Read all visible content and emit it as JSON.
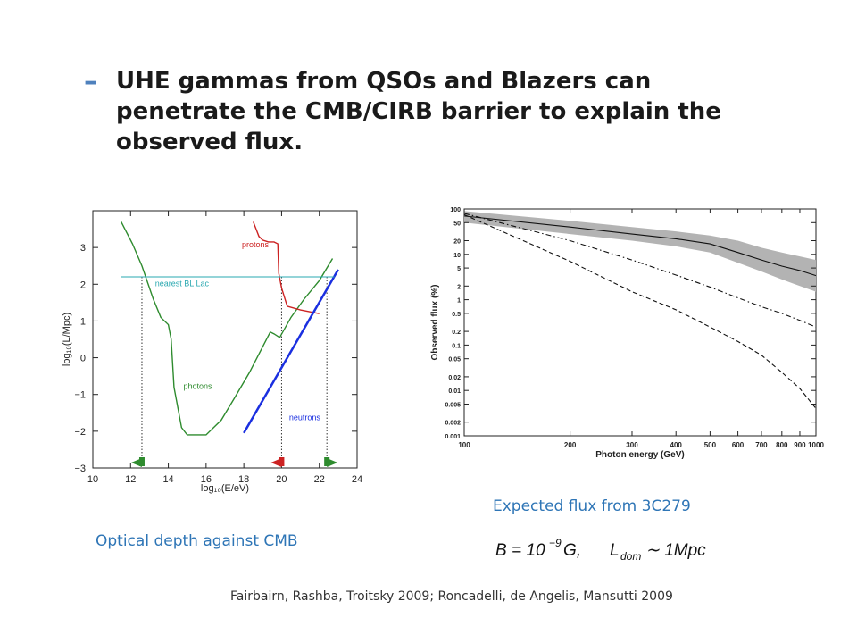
{
  "slide": {
    "bullet_dash": "–",
    "bullet_lines": [
      "UHE gammas  from QSOs and Blazers can",
      "penetrate the CMB/CIRB barrier to explain the",
      "observed flux."
    ],
    "caption_left": "Optical depth against CMB",
    "caption_right": "Expected flux from 3C279",
    "formula": "B = 10⁻⁹G,    L_dom ∼ 1Mpc",
    "references": "Fairbairn, Rashba, Troitsky 2009; Roncadelli, de Angelis, Mansutti 2009"
  },
  "chart_data": [
    {
      "type": "line",
      "xlabel": "log₁₀(E/eV)",
      "ylabel": "log₁₀(L/Mpc)",
      "xlim": [
        10,
        24
      ],
      "ylim": [
        -3,
        4
      ],
      "xticks": [
        10,
        12,
        14,
        16,
        18,
        20,
        22,
        24
      ],
      "yticks": [
        -3,
        -2,
        -1,
        0,
        1,
        2,
        3
      ],
      "series": [
        {
          "name": "photons",
          "color": "#2e8b2e",
          "x": [
            11.5,
            12.1,
            12.6,
            13.2,
            13.6,
            14.0,
            14.15,
            14.3,
            14.7,
            15.0,
            15.5,
            16.0,
            16.8,
            17.5,
            18.3,
            19.0,
            19.4,
            19.6,
            19.9,
            20.5,
            21.2,
            22.0,
            22.7
          ],
          "y": [
            3.7,
            3.1,
            2.5,
            1.6,
            1.1,
            0.9,
            0.5,
            -0.8,
            -1.9,
            -2.1,
            -2.1,
            -2.1,
            -1.7,
            -1.1,
            -0.4,
            0.3,
            0.7,
            0.65,
            0.55,
            1.1,
            1.6,
            2.1,
            2.7
          ]
        },
        {
          "name": "protons",
          "color": "#cc2222",
          "x": [
            18.5,
            18.8,
            19.0,
            19.3,
            19.6,
            19.8,
            19.85,
            20.0,
            20.3,
            21.0,
            22.0
          ],
          "y": [
            3.7,
            3.3,
            3.2,
            3.15,
            3.15,
            3.1,
            2.3,
            1.9,
            1.4,
            1.3,
            1.2
          ]
        },
        {
          "name": "neutrons",
          "color": "#1a2fe0",
          "x": [
            18.0,
            23.0
          ],
          "y": [
            -2.05,
            2.4
          ]
        },
        {
          "name": "nearest BL Lac",
          "color": "#2aa8b0",
          "x": [
            11.5,
            22.8
          ],
          "y": [
            2.2,
            2.2
          ]
        }
      ],
      "vlines": [
        12.6,
        20.0,
        22.4
      ],
      "annotations": [
        "protons",
        "nearest BL Lac",
        "photons",
        "neutrons"
      ]
    },
    {
      "type": "line",
      "xlabel": "Photon energy (GeV)",
      "ylabel": "Observed flux (%)",
      "xscale": "log",
      "yscale": "log",
      "xlim": [
        100,
        1000
      ],
      "ylim": [
        0.001,
        100
      ],
      "xticks": [
        100,
        200,
        300,
        400,
        500,
        600,
        700,
        800,
        900,
        1000
      ],
      "yticks": [
        0.001,
        0.002,
        0.005,
        0.01,
        0.02,
        0.05,
        0.1,
        0.2,
        0.5,
        1,
        2,
        5,
        10,
        20,
        50,
        100
      ],
      "ytick_labels": [
        "0.001",
        "0.002",
        "0.005",
        "0.01",
        "0.02",
        "0.05",
        "0.1",
        "0.2",
        "0.5",
        "1",
        "2",
        "5",
        "10",
        "20",
        "50",
        "100"
      ],
      "band": {
        "x": [
          100,
          200,
          300,
          400,
          500,
          600,
          700,
          800,
          900,
          1000
        ],
        "upper": [
          90,
          55,
          40,
          32,
          26,
          20,
          14,
          11,
          9,
          7.5
        ],
        "lower": [
          50,
          28,
          20,
          15,
          11,
          6.5,
          4.2,
          2.8,
          2.0,
          1.5
        ]
      },
      "series": [
        {
          "style": "solid",
          "x": [
            100,
            200,
            300,
            400,
            500,
            600,
            700,
            800,
            900,
            1000
          ],
          "y": [
            70,
            40,
            28,
            22,
            17,
            11,
            7.5,
            5.5,
            4.4,
            3.4
          ]
        },
        {
          "style": "dashdot",
          "x": [
            100,
            200,
            300,
            400,
            500,
            600,
            700,
            800,
            900,
            1000
          ],
          "y": [
            80,
            20,
            7.5,
            3.5,
            1.9,
            1.1,
            0.7,
            0.5,
            0.35,
            0.25
          ]
        },
        {
          "style": "dashed",
          "x": [
            100,
            200,
            300,
            400,
            500,
            600,
            700,
            800,
            900,
            1000
          ],
          "y": [
            75,
            7,
            1.5,
            0.6,
            0.25,
            0.12,
            0.06,
            0.025,
            0.011,
            0.004
          ]
        }
      ]
    }
  ]
}
